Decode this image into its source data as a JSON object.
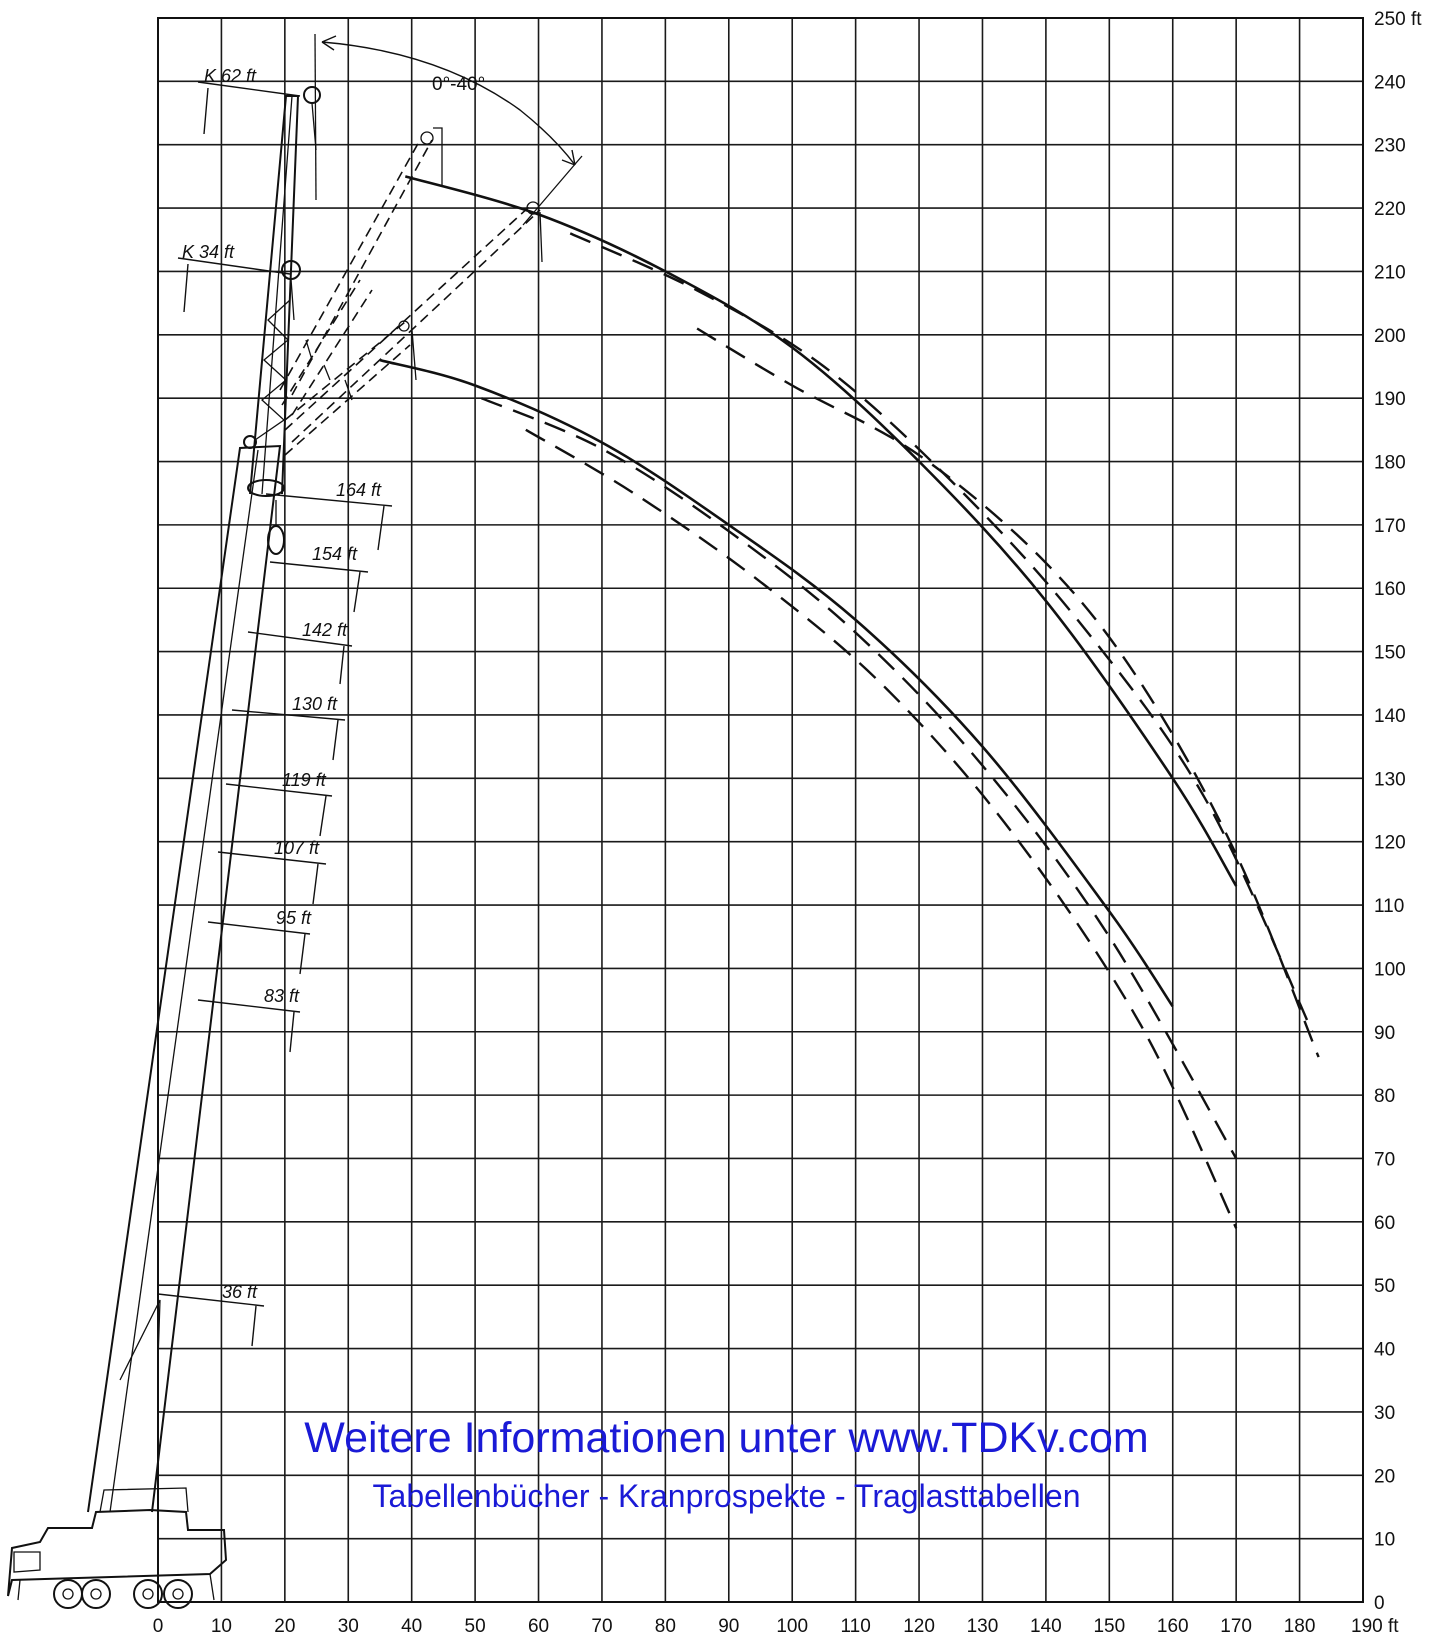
{
  "chart_data": {
    "type": "line",
    "title": "",
    "xlabel": "",
    "ylabel": "",
    "x_unit": "ft",
    "y_unit": "ft",
    "xlim": [
      0,
      190
    ],
    "ylim": [
      0,
      250
    ],
    "x_ticks": [
      0,
      10,
      20,
      30,
      40,
      50,
      60,
      70,
      80,
      90,
      100,
      110,
      120,
      130,
      140,
      150,
      160,
      170,
      180,
      190
    ],
    "y_ticks": [
      0,
      10,
      20,
      30,
      40,
      50,
      60,
      70,
      80,
      90,
      100,
      110,
      120,
      130,
      140,
      150,
      160,
      170,
      180,
      190,
      200,
      210,
      220,
      230,
      240,
      250
    ],
    "x_last_tick_label": "190 ft",
    "y_last_tick_label": "250  ft",
    "grid": true,
    "angle_label": "0°-40°",
    "boom_labels": [
      "K 62 ft",
      "K 34 ft",
      "164 ft",
      "154 ft",
      "142 ft",
      "130 ft",
      "119 ft",
      "107 ft",
      "95 ft",
      "83 ft",
      "36 ft"
    ],
    "series": [
      {
        "style": "solid",
        "points": [
          [
            39,
            225
          ],
          [
            60,
            219
          ],
          [
            80,
            210
          ],
          [
            100,
            198
          ],
          [
            120,
            180
          ],
          [
            140,
            158
          ],
          [
            160,
            130
          ],
          [
            170,
            113
          ]
        ]
      },
      {
        "style": "dashed",
        "points": [
          [
            65,
            216
          ],
          [
            85,
            207
          ],
          [
            105,
            195
          ],
          [
            125,
            177
          ],
          [
            145,
            155
          ],
          [
            165,
            127
          ],
          [
            182,
            90
          ]
        ]
      },
      {
        "style": "dashed",
        "points": [
          [
            85,
            201
          ],
          [
            100,
            192
          ],
          [
            120,
            181
          ],
          [
            140,
            164
          ],
          [
            155,
            145
          ],
          [
            170,
            118
          ],
          [
            183,
            86
          ]
        ]
      },
      {
        "style": "solid",
        "points": [
          [
            35,
            196
          ],
          [
            50,
            192
          ],
          [
            70,
            183
          ],
          [
            90,
            170
          ],
          [
            110,
            155
          ],
          [
            130,
            135
          ],
          [
            150,
            109
          ],
          [
            160,
            94
          ]
        ]
      },
      {
        "style": "dashed",
        "points": [
          [
            51,
            190
          ],
          [
            70,
            182
          ],
          [
            90,
            169
          ],
          [
            110,
            153
          ],
          [
            130,
            132
          ],
          [
            150,
            105
          ],
          [
            170,
            70
          ]
        ]
      },
      {
        "style": "dashed",
        "points": [
          [
            58,
            185
          ],
          [
            75,
            175
          ],
          [
            95,
            161
          ],
          [
            115,
            144
          ],
          [
            135,
            121
          ],
          [
            155,
            91
          ],
          [
            170,
            59
          ]
        ]
      }
    ]
  },
  "watermark": {
    "line1": "Weitere Informationen unter www.TDKv.com",
    "line2": "Tabellenbücher - Kranprospekte - Traglasttabellen"
  }
}
